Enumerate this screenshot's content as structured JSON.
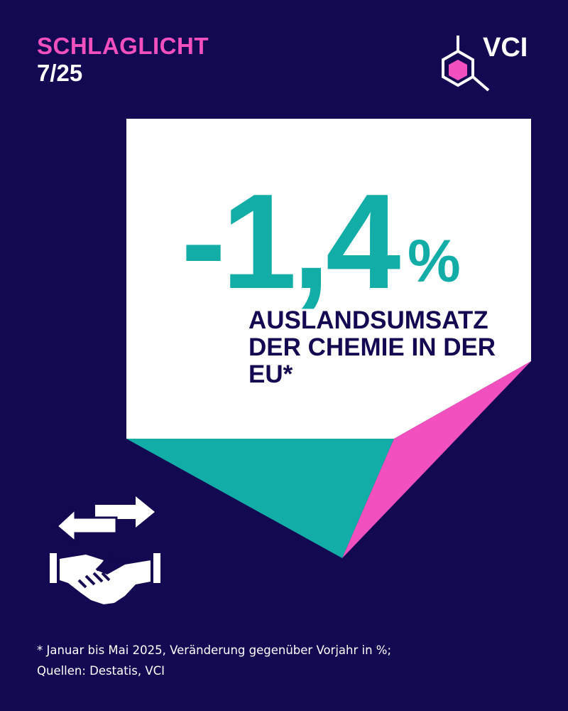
{
  "header": {
    "kicker": "SCHLAGLICHT",
    "issue": "7/25"
  },
  "logo": {
    "text": "VCI",
    "icon": "benzene-ring-logo-icon"
  },
  "kpi": {
    "value": "-1,4",
    "unit": "%",
    "label": "AUSLANDSUMSATZ DER CHEMIE IN DER EU*"
  },
  "illustration": {
    "icon": "handshake-exchange-arrows-icon"
  },
  "footnote": {
    "line1": "* Januar bis Mai 2025, Veränderung gegenüber Vorjahr in %;",
    "line2": "Quellen: Destatis, VCI"
  },
  "colors": {
    "background": "#130852",
    "pink": "#f24fbf",
    "teal": "#13ada8",
    "white": "#ffffff"
  }
}
